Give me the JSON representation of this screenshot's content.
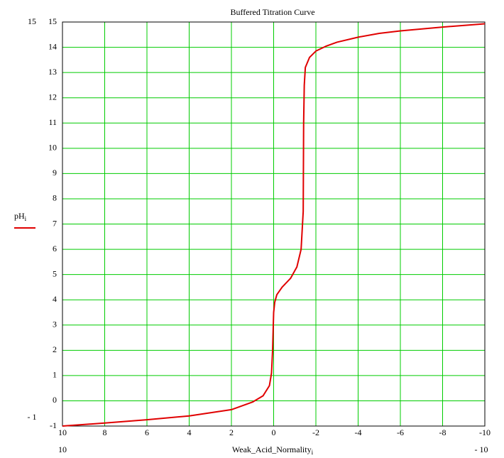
{
  "chart_data": {
    "type": "line",
    "title": "Buffered Titration Curve",
    "xlabel": "Weak_Acid_Normality",
    "xlabel_subscript": "i",
    "series": [
      {
        "name": "pH",
        "name_subscript": "i",
        "color": "#e00000",
        "x": [
          10,
          8,
          6,
          4,
          2,
          1,
          0.5,
          0.2,
          0.1,
          0.05,
          0,
          -0.05,
          -0.15,
          -0.4,
          -0.8,
          -1.1,
          -1.3,
          -1.4,
          -1.42,
          -1.45,
          -1.5,
          -1.7,
          -2,
          -2.5,
          -3,
          -4,
          -5,
          -6,
          -8,
          -10
        ],
        "values": [
          -1,
          -0.88,
          -0.75,
          -0.6,
          -0.35,
          -0.05,
          0.2,
          0.6,
          1.1,
          2,
          3.5,
          3.9,
          4.2,
          4.5,
          4.85,
          5.3,
          6,
          7.5,
          11,
          12.5,
          13.2,
          13.6,
          13.85,
          14.05,
          14.2,
          14.4,
          14.55,
          14.65,
          14.8,
          14.93
        ]
      }
    ],
    "xlim": [
      {
        "value": 10,
        "label": "10"
      },
      {
        "value": -10,
        "label": "- 10"
      }
    ],
    "ylim": [
      {
        "value": -1,
        "label": "- 1"
      },
      {
        "value": 15,
        "label": "15"
      }
    ],
    "xticks": [
      10,
      8,
      6,
      4,
      2,
      0,
      -2,
      -4,
      -6,
      -8,
      -10
    ],
    "yticks": [
      -1,
      0,
      1,
      2,
      3,
      4,
      5,
      6,
      7,
      8,
      9,
      10,
      11,
      12,
      13,
      14,
      15
    ],
    "grid": true,
    "grid_color": "#00cc00"
  }
}
